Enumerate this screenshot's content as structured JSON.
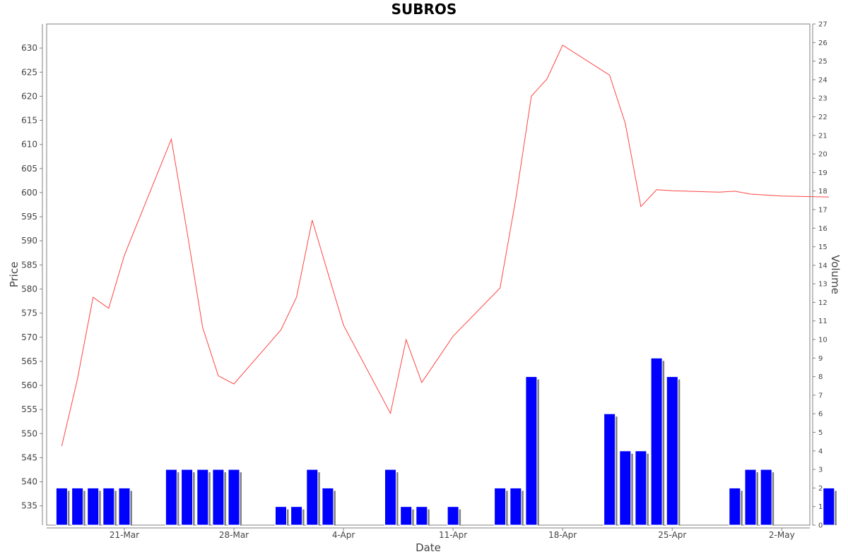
{
  "chart_data": {
    "type": "line",
    "title": "SUBROS",
    "xlabel": "Date",
    "ylabel": "Price",
    "y2label": "Volume",
    "ylim": [
      531,
      635
    ],
    "y2lim": [
      0,
      27
    ],
    "x_tick_labels": [
      "21-Mar",
      "28-Mar",
      "4-Apr",
      "11-Apr",
      "18-Apr",
      "25-Apr",
      "2-May"
    ],
    "y_ticks": [
      535,
      540,
      545,
      550,
      555,
      560,
      565,
      570,
      575,
      580,
      585,
      590,
      595,
      600,
      605,
      610,
      615,
      620,
      625,
      630
    ],
    "y2_ticks": [
      0,
      1,
      2,
      3,
      4,
      5,
      6,
      7,
      8,
      9,
      10,
      11,
      12,
      13,
      14,
      15,
      16,
      17,
      18,
      19,
      20,
      21,
      22,
      23,
      24,
      25,
      26,
      27
    ],
    "dates": [
      "16-Mar",
      "17-Mar",
      "18-Mar",
      "19-Mar",
      "20-Mar",
      "23-Mar",
      "24-Mar",
      "25-Mar",
      "26-Mar",
      "27-Mar",
      "30-Mar",
      "31-Mar",
      "1-Apr",
      "2-Apr",
      "3-Apr",
      "6-Apr",
      "7-Apr",
      "8-Apr",
      "9-Apr",
      "10-Apr",
      "13-Apr",
      "14-Apr",
      "15-Apr",
      "16-Apr",
      "17-Apr",
      "20-Apr",
      "21-Apr",
      "22-Apr",
      "23-Apr",
      "24-Apr",
      "27-Apr",
      "28-Apr",
      "29-Apr",
      "30-Apr",
      "1-May",
      "4-May"
    ],
    "x_days": [
      -4,
      -3,
      -2,
      -1,
      0,
      3,
      4,
      5,
      6,
      7,
      10,
      11,
      12,
      13,
      14,
      17,
      18,
      19,
      20,
      21,
      24,
      25,
      26,
      27,
      28,
      31,
      32,
      33,
      34,
      35,
      38,
      39,
      40,
      41,
      42,
      45
    ],
    "series": [
      {
        "name": "Price",
        "kind": "line",
        "color": "#ff4444",
        "values": [
          547.4,
          561.3,
          578.3,
          576.0,
          587.0,
          611.1,
          592.0,
          572.0,
          562.0,
          560.3,
          571.5,
          578.3,
          594.3,
          583.4,
          572.5,
          554.2,
          569.5,
          560.6,
          565.4,
          570.2,
          580.2,
          598.6,
          620.0,
          623.6,
          630.6,
          624.4,
          614.4,
          597.1,
          600.6,
          600.4,
          600.1,
          600.3,
          599.7,
          599.5,
          599.3,
          599.1
        ]
      },
      {
        "name": "Volume",
        "kind": "bar",
        "color": "#0000ff",
        "shadow": "#808080",
        "values": [
          2,
          2,
          2,
          2,
          2,
          3,
          3,
          3,
          3,
          3,
          1,
          1,
          3,
          2,
          0,
          3,
          1,
          1,
          0,
          1,
          2,
          2,
          8,
          0,
          0,
          6,
          4,
          4,
          9,
          8,
          0,
          2,
          3,
          3,
          0,
          2
        ]
      }
    ],
    "grid": false,
    "legend": "none"
  },
  "colors": {
    "background": "#ffffff",
    "frame": "#808080",
    "price_line": "#ff4444",
    "volume_bar": "#0000ff",
    "volume_shadow": "#808080"
  }
}
